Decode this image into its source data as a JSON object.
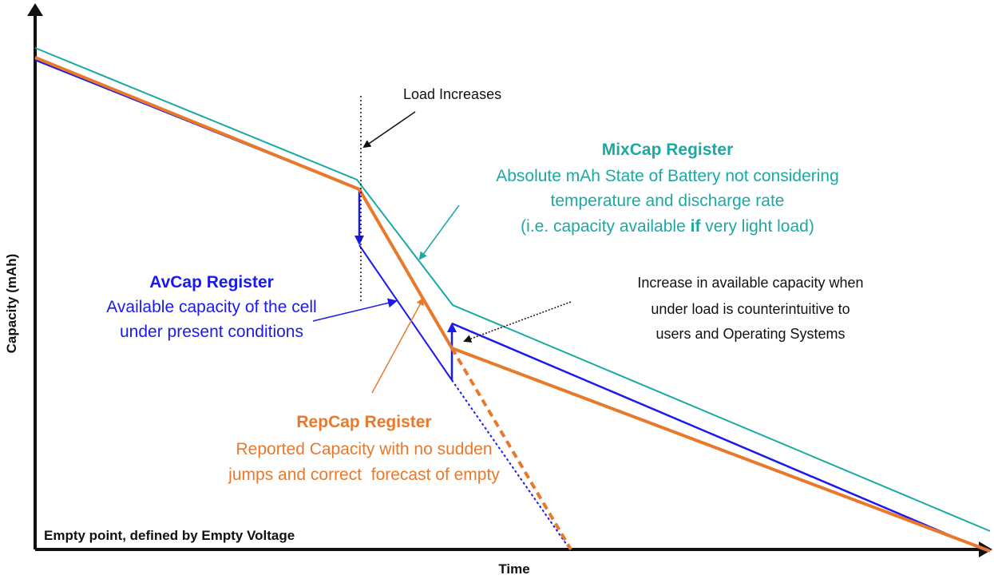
{
  "axes": {
    "y_label": "Capacity (mAh)",
    "x_label": "Time",
    "empty_point": "Empty point, defined by Empty Voltage"
  },
  "load_note": "Load Increases",
  "mixcap": {
    "title": "MixCap Register",
    "lines": [
      "Absolute mAh State of Battery not considering",
      "temperature and discharge rate"
    ],
    "last_line": [
      "(i.e. capacity available ",
      "if",
      " very light load)"
    ]
  },
  "avcap": {
    "title": "AvCap Register",
    "lines": [
      "Available capacity of the cell",
      "under present conditions"
    ]
  },
  "increase_note": {
    "lines": [
      "Increase in available capacity when",
      "under load is counterintuitive to",
      "users and Operating Systems"
    ]
  },
  "repcap": {
    "title": "RepCap Register",
    "lines": [
      "Reported Capacity with no sudden",
      "jumps and correct  forecast of empty"
    ]
  }
}
